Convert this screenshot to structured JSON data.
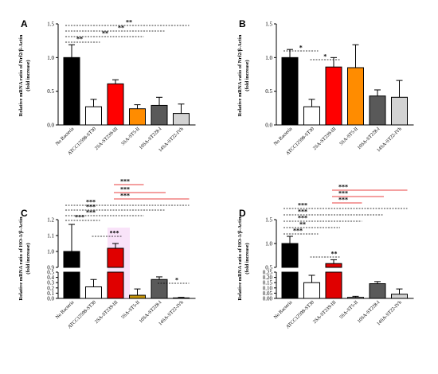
{
  "colors": {
    "bars": [
      "#000000",
      "#ffffff",
      "#ff0000",
      "#ff8c00",
      "#595959",
      "#d3d3d3"
    ],
    "bars_C": [
      "#000000",
      "#ffffff",
      "#e00000",
      "#c8960a",
      "#595959",
      "#d3d3d3"
    ],
    "bars_D": [
      "#000000",
      "#ffffff",
      "#e00000",
      "#d0d0d0",
      "#595959",
      "#d3d3d3"
    ],
    "sig_black": "#000000",
    "sig_red": "#e00000",
    "highlight": "#f4c8f4"
  },
  "chart_data": [
    {
      "panel": "A",
      "type": "bar",
      "ylabel": [
        "Relative mRNA ratio of Nrf2/β-Actin",
        "(fold increase)"
      ],
      "categories": [
        "No Bacteria",
        "ATCC12598-ST30",
        "2SA-ST239-III",
        "5SA-ST5-II",
        "10SA-ST228-I",
        "14SA-ST22-IVh"
      ],
      "values": [
        1.0,
        0.27,
        0.61,
        0.24,
        0.29,
        0.17
      ],
      "errors": [
        0.19,
        0.11,
        0.06,
        0.06,
        0.12,
        0.14
      ],
      "ylim": [
        0,
        1.5
      ],
      "yticks": [
        "0.0",
        "0.5",
        "1.0",
        "1.5"
      ],
      "significance": [
        {
          "from": 0,
          "to": 1,
          "label": "**",
          "color": "black"
        },
        {
          "from": 0,
          "to": 3,
          "label": "**",
          "color": "black"
        },
        {
          "from": 0,
          "to": 4,
          "label": "**",
          "color": "black"
        },
        {
          "from": 0,
          "to": 5,
          "label": "**",
          "color": "black"
        }
      ]
    },
    {
      "panel": "B",
      "type": "bar",
      "ylabel": [
        "Relative mRNA ratio of Nrf2/β-Actin",
        "(fold increase)"
      ],
      "categories": [
        "No Bacteria",
        "ATCC12598-ST30",
        "2SA-ST239-III",
        "5SA-ST5-II",
        "10SA-ST228-I",
        "14SA-ST22-IVh"
      ],
      "values": [
        1.0,
        0.27,
        0.86,
        0.85,
        0.43,
        0.41
      ],
      "errors": [
        0.12,
        0.11,
        0.14,
        0.34,
        0.09,
        0.25
      ],
      "ylim": [
        0,
        1.5
      ],
      "yticks": [
        "0.0",
        "0.5",
        "1.0",
        "1.5"
      ],
      "significance": [
        {
          "from": 0,
          "to": 1,
          "label": "*",
          "color": "black"
        },
        {
          "from": 1,
          "to": 2,
          "label": "*",
          "color": "black"
        }
      ]
    },
    {
      "panel": "C",
      "type": "bar",
      "broken_axis": true,
      "ylabel": [
        "Relative mRNA ratio of HO-1/β-Actin",
        "(fold increase)"
      ],
      "categories": [
        "No Bacteria",
        "ATCC12598-ST30",
        "2SA-ST239-III",
        "5SA-ST5-II",
        "10SA-ST228-I",
        "14SA-ST22-IVh"
      ],
      "values": [
        1.0,
        0.22,
        1.02,
        0.06,
        0.36,
        0.01
      ],
      "errors": [
        0.17,
        0.14,
        0.03,
        0.12,
        0.05,
        0.01
      ],
      "lower_yticks": [
        "0.0",
        "0.1",
        "0.2",
        "0.3",
        "0.4",
        "0.5"
      ],
      "upper_yticks": [
        "0.9",
        "1.0",
        "1.1",
        "1.2"
      ],
      "significance": [
        {
          "from": 0,
          "to": 1,
          "label": "***",
          "color": "black"
        },
        {
          "from": 1,
          "to": 2,
          "label": "***",
          "color": "black"
        },
        {
          "from": 0,
          "to": 3,
          "label": "***",
          "color": "black"
        },
        {
          "from": 0,
          "to": 4,
          "label": "***",
          "color": "black"
        },
        {
          "from": 0,
          "to": 5,
          "label": "***",
          "color": "black"
        },
        {
          "from": 2,
          "to": 3,
          "label": "***",
          "color": "red"
        },
        {
          "from": 2,
          "to": 4,
          "label": "***",
          "color": "red"
        },
        {
          "from": 2,
          "to": 5,
          "label": "***",
          "color": "red"
        },
        {
          "from": 4,
          "to": 5,
          "label": "*",
          "color": "black"
        }
      ]
    },
    {
      "panel": "D",
      "type": "bar",
      "broken_axis": true,
      "ylabel": [
        "Relative mRNA ratio of HO-1/β-Actin",
        "(fold increase)"
      ],
      "categories": [
        "No Bacteria",
        "ATCC12598-ST30",
        "2SA-ST239-III",
        "5SA-ST5-II",
        "10SA-ST228-I",
        "14SA-ST22-IVh"
      ],
      "values": [
        1.0,
        0.15,
        0.58,
        0.01,
        0.14,
        0.04
      ],
      "errors": [
        0.15,
        0.07,
        0.08,
        0.01,
        0.02,
        0.05
      ],
      "lower_yticks": [
        "0.00",
        "0.05",
        "0.10",
        "0.15",
        "0.20",
        "0.25"
      ],
      "upper_yticks": [
        "0.5",
        "1.0",
        "1.5"
      ],
      "significance": [
        {
          "from": 0,
          "to": 1,
          "label": "***",
          "color": "black"
        },
        {
          "from": 1,
          "to": 2,
          "label": "**",
          "color": "black"
        },
        {
          "from": 0,
          "to": 2,
          "label": "**",
          "color": "black"
        },
        {
          "from": 0,
          "to": 3,
          "label": "***",
          "color": "black"
        },
        {
          "from": 0,
          "to": 4,
          "label": "***",
          "color": "black"
        },
        {
          "from": 0,
          "to": 5,
          "label": "***",
          "color": "black"
        },
        {
          "from": 2,
          "to": 3,
          "label": "***",
          "color": "red"
        },
        {
          "from": 2,
          "to": 4,
          "label": "***",
          "color": "red"
        },
        {
          "from": 2,
          "to": 5,
          "label": "***",
          "color": "red"
        }
      ]
    }
  ]
}
